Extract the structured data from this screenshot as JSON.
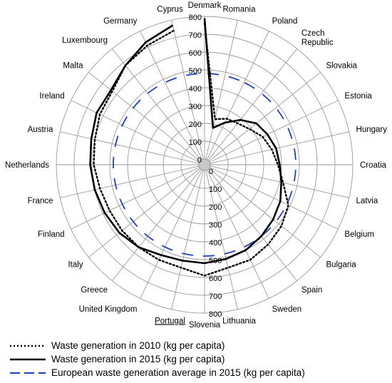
{
  "chart_data": {
    "type": "radar",
    "title": "",
    "categories": [
      "Denmark",
      "Romania",
      "Poland",
      "Czech Republic",
      "Slovakia",
      "Estonia",
      "Hungary",
      "Croatia",
      "Latvia",
      "Belgium",
      "Bulgaria",
      "Spain",
      "Sweden",
      "Lithuania",
      "Slovenia",
      "Portugal",
      "United Kingdom",
      "Greece",
      "Italy",
      "Finland",
      "France",
      "Netherlands",
      "Austria",
      "Ireland",
      "Malta",
      "Luxembourg",
      "Germany",
      "Cyprus"
    ],
    "underlined_category": "Portugal",
    "spiral_axis": {
      "min": 0,
      "max": 800,
      "ticks": [
        0,
        100,
        200,
        300,
        400,
        500,
        600,
        700,
        800
      ],
      "tick_labels": [
        "0",
        "100",
        "200",
        "300",
        "400",
        "500",
        "600",
        "700",
        "800"
      ]
    },
    "series": [
      {
        "name": "Waste generation in 2010 (kg per capita)",
        "style": "dotted",
        "color": "#000000",
        "values": [
          760,
          230,
          255,
          265,
          290,
          330,
          355,
          380,
          420,
          490,
          520,
          540,
          560,
          560,
          590,
          560,
          560,
          560,
          560,
          560,
          570,
          590,
          600,
          620,
          630,
          680,
          710,
          740
        ]
      },
      {
        "name": "Waste generation in 2015 (kg per capita)",
        "style": "solid",
        "color": "#000000",
        "values": [
          790,
          180,
          230,
          290,
          340,
          360,
          380,
          390,
          410,
          440,
          460,
          480,
          500,
          510,
          520,
          520,
          530,
          560,
          580,
          590,
          600,
          610,
          620,
          640,
          640,
          680,
          730,
          770
        ]
      },
      {
        "name": "European waste generation average in 2015 (kg per capita)",
        "style": "dashed",
        "color": "#1f3fbf",
        "values": [
          480,
          480,
          480,
          480,
          480,
          480,
          480,
          480,
          480,
          480,
          480,
          480,
          480,
          480,
          480,
          480,
          480,
          480,
          480,
          480,
          480,
          480,
          480,
          480,
          480,
          480,
          480,
          480
        ]
      }
    ]
  },
  "legend": {
    "items": [
      {
        "label": "Waste generation in 2010 (kg per capita)"
      },
      {
        "label": "Waste generation in 2015 (kg per capita)"
      },
      {
        "label": "European waste generation average in 2015 (kg per capita)"
      }
    ]
  }
}
